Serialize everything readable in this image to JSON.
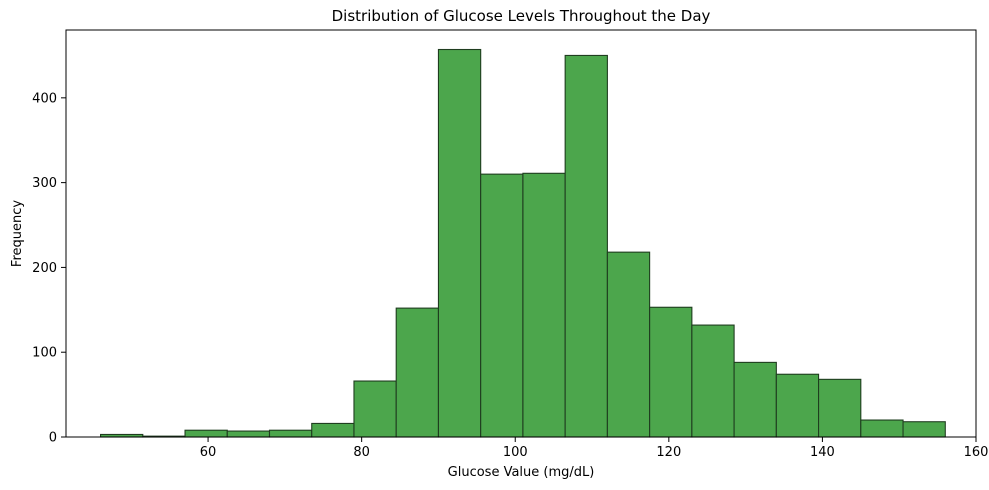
{
  "chart_data": {
    "type": "bar",
    "title": "Distribution of Glucose Levels Throughout the Day",
    "xlabel": "Glucose Value (mg/dL)",
    "ylabel": "Frequency",
    "xlim": [
      41.5,
      160.0
    ],
    "ylim": [
      0,
      480
    ],
    "xticks": [
      60,
      80,
      100,
      120,
      140,
      160
    ],
    "yticks": [
      0,
      100,
      200,
      300,
      400
    ],
    "bin_edges": [
      46.0,
      51.5,
      57.0,
      62.5,
      68.0,
      73.5,
      79.0,
      84.5,
      90.0,
      95.5,
      101.0,
      106.5,
      112.0,
      117.5,
      123.0,
      128.5,
      134.0,
      139.5,
      145.0,
      150.5,
      156.0
    ],
    "values": [
      3,
      1,
      8,
      7,
      8,
      16,
      66,
      152,
      457,
      310,
      311,
      450,
      218,
      153,
      132,
      88,
      74,
      68,
      20,
      18
    ],
    "grid": false,
    "bar_color": "#4ca64c",
    "edge_color": "#1f3d1f"
  }
}
